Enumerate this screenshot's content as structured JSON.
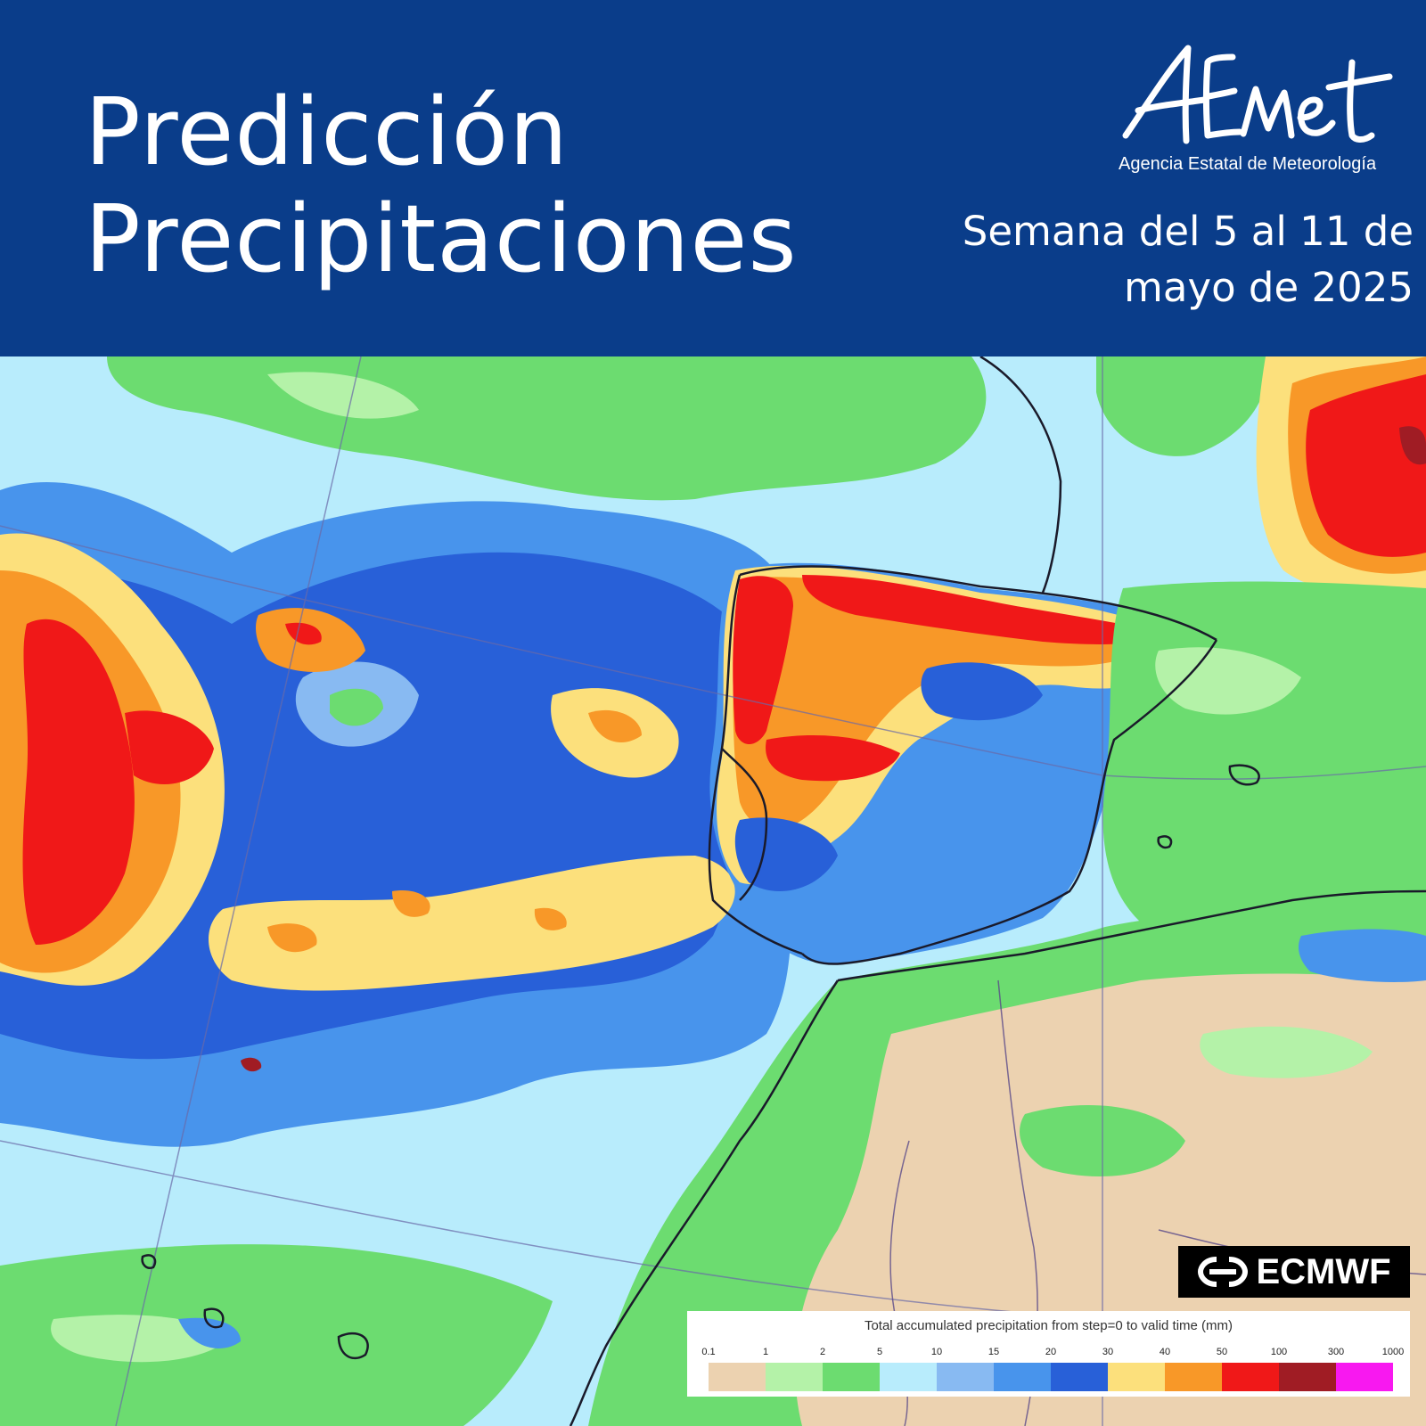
{
  "header": {
    "title_line1": "Predicción",
    "title_line2": "Precipitaciones",
    "logo_text": "AEmet",
    "logo_subtitle": "Agencia Estatal de Meteorología",
    "week_line1": "Semana del 5 al 11 de",
    "week_line2": "mayo de 2025"
  },
  "provider": {
    "name": "ECMWF"
  },
  "legend": {
    "title": "Total accumulated precipitation from step=0 to valid time (mm)",
    "ticks": [
      "0.1",
      "1",
      "2",
      "5",
      "10",
      "15",
      "20",
      "30",
      "40",
      "50",
      "100",
      "300",
      "1000"
    ],
    "colors": [
      "#ecd2b0",
      "#b4f2a8",
      "#6cdc70",
      "#b8ecfc",
      "#88baf2",
      "#4894ec",
      "#2860d8",
      "#fce07c",
      "#f89828",
      "#f01818",
      "#a01c24",
      "#f818f0"
    ]
  },
  "colors": {
    "header_bg": "#0a3d8a",
    "very_dry": "#ecd2b0",
    "light_green": "#b4f2a8",
    "green": "#6cdc70",
    "light_cyan": "#b8ecfc",
    "light_blue": "#88baf2",
    "blue": "#4894ec",
    "deep_blue": "#2860d8",
    "yellow": "#fce07c",
    "orange": "#f89828",
    "red": "#f01818",
    "dark_red": "#a01c24"
  }
}
